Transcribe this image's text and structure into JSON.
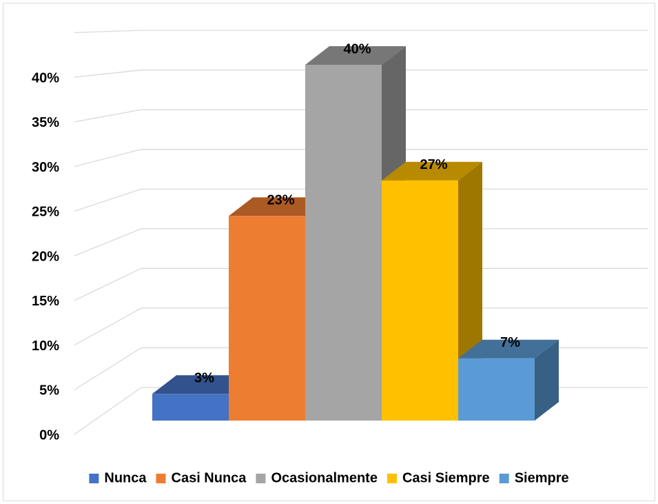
{
  "chart_data": {
    "type": "bar3d",
    "categories": [
      "Nunca",
      "Casi Nunca",
      "Ocasionalmente",
      "Casi Siempre",
      "Siempre"
    ],
    "values": [
      3,
      23,
      40,
      27,
      7
    ],
    "value_labels": [
      "3%",
      "23%",
      "40%",
      "27%",
      "7%"
    ],
    "colors": [
      "#4472c4",
      "#ed7d31",
      "#a5a5a5",
      "#ffc000",
      "#5b9bd5"
    ],
    "ylim": [
      0,
      45
    ],
    "yticks": [
      {
        "value": 0,
        "label": "0%"
      },
      {
        "value": 5,
        "label": "5%"
      },
      {
        "value": 10,
        "label": "10%"
      },
      {
        "value": 15,
        "label": "15%"
      },
      {
        "value": 20,
        "label": "20%"
      },
      {
        "value": 25,
        "label": "25%"
      },
      {
        "value": 30,
        "label": "30%"
      },
      {
        "value": 35,
        "label": "35%"
      },
      {
        "value": 40,
        "label": "40%"
      }
    ],
    "grid": true,
    "legend": "bottom"
  }
}
